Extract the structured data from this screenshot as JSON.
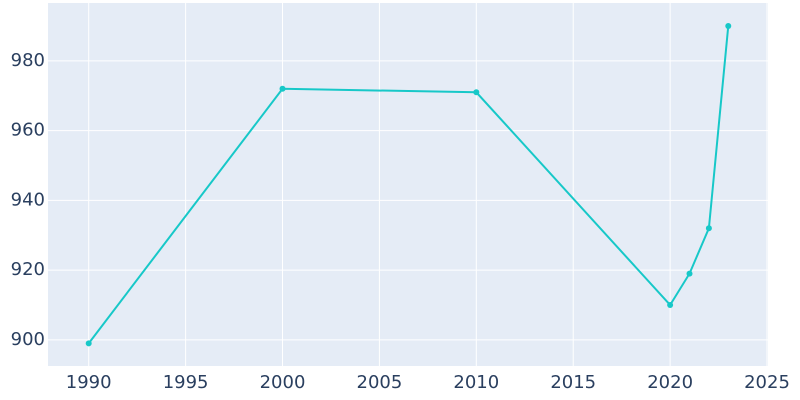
{
  "chart_data": {
    "type": "line",
    "x": [
      1990,
      2000,
      2010,
      2020,
      2021,
      2022,
      2023
    ],
    "series": [
      {
        "color": "#17c8c8",
        "values": [
          899,
          972,
          971,
          910,
          919,
          932,
          990
        ]
      }
    ],
    "xlim": [
      1987.9,
      2025.05
    ],
    "xticks": [
      1990,
      1995,
      2000,
      2005,
      2010,
      2015,
      2020,
      2025
    ],
    "ylim": [
      892.5,
      996.6
    ],
    "yticks": [
      900,
      920,
      940,
      960,
      980
    ],
    "grid": true
  }
}
